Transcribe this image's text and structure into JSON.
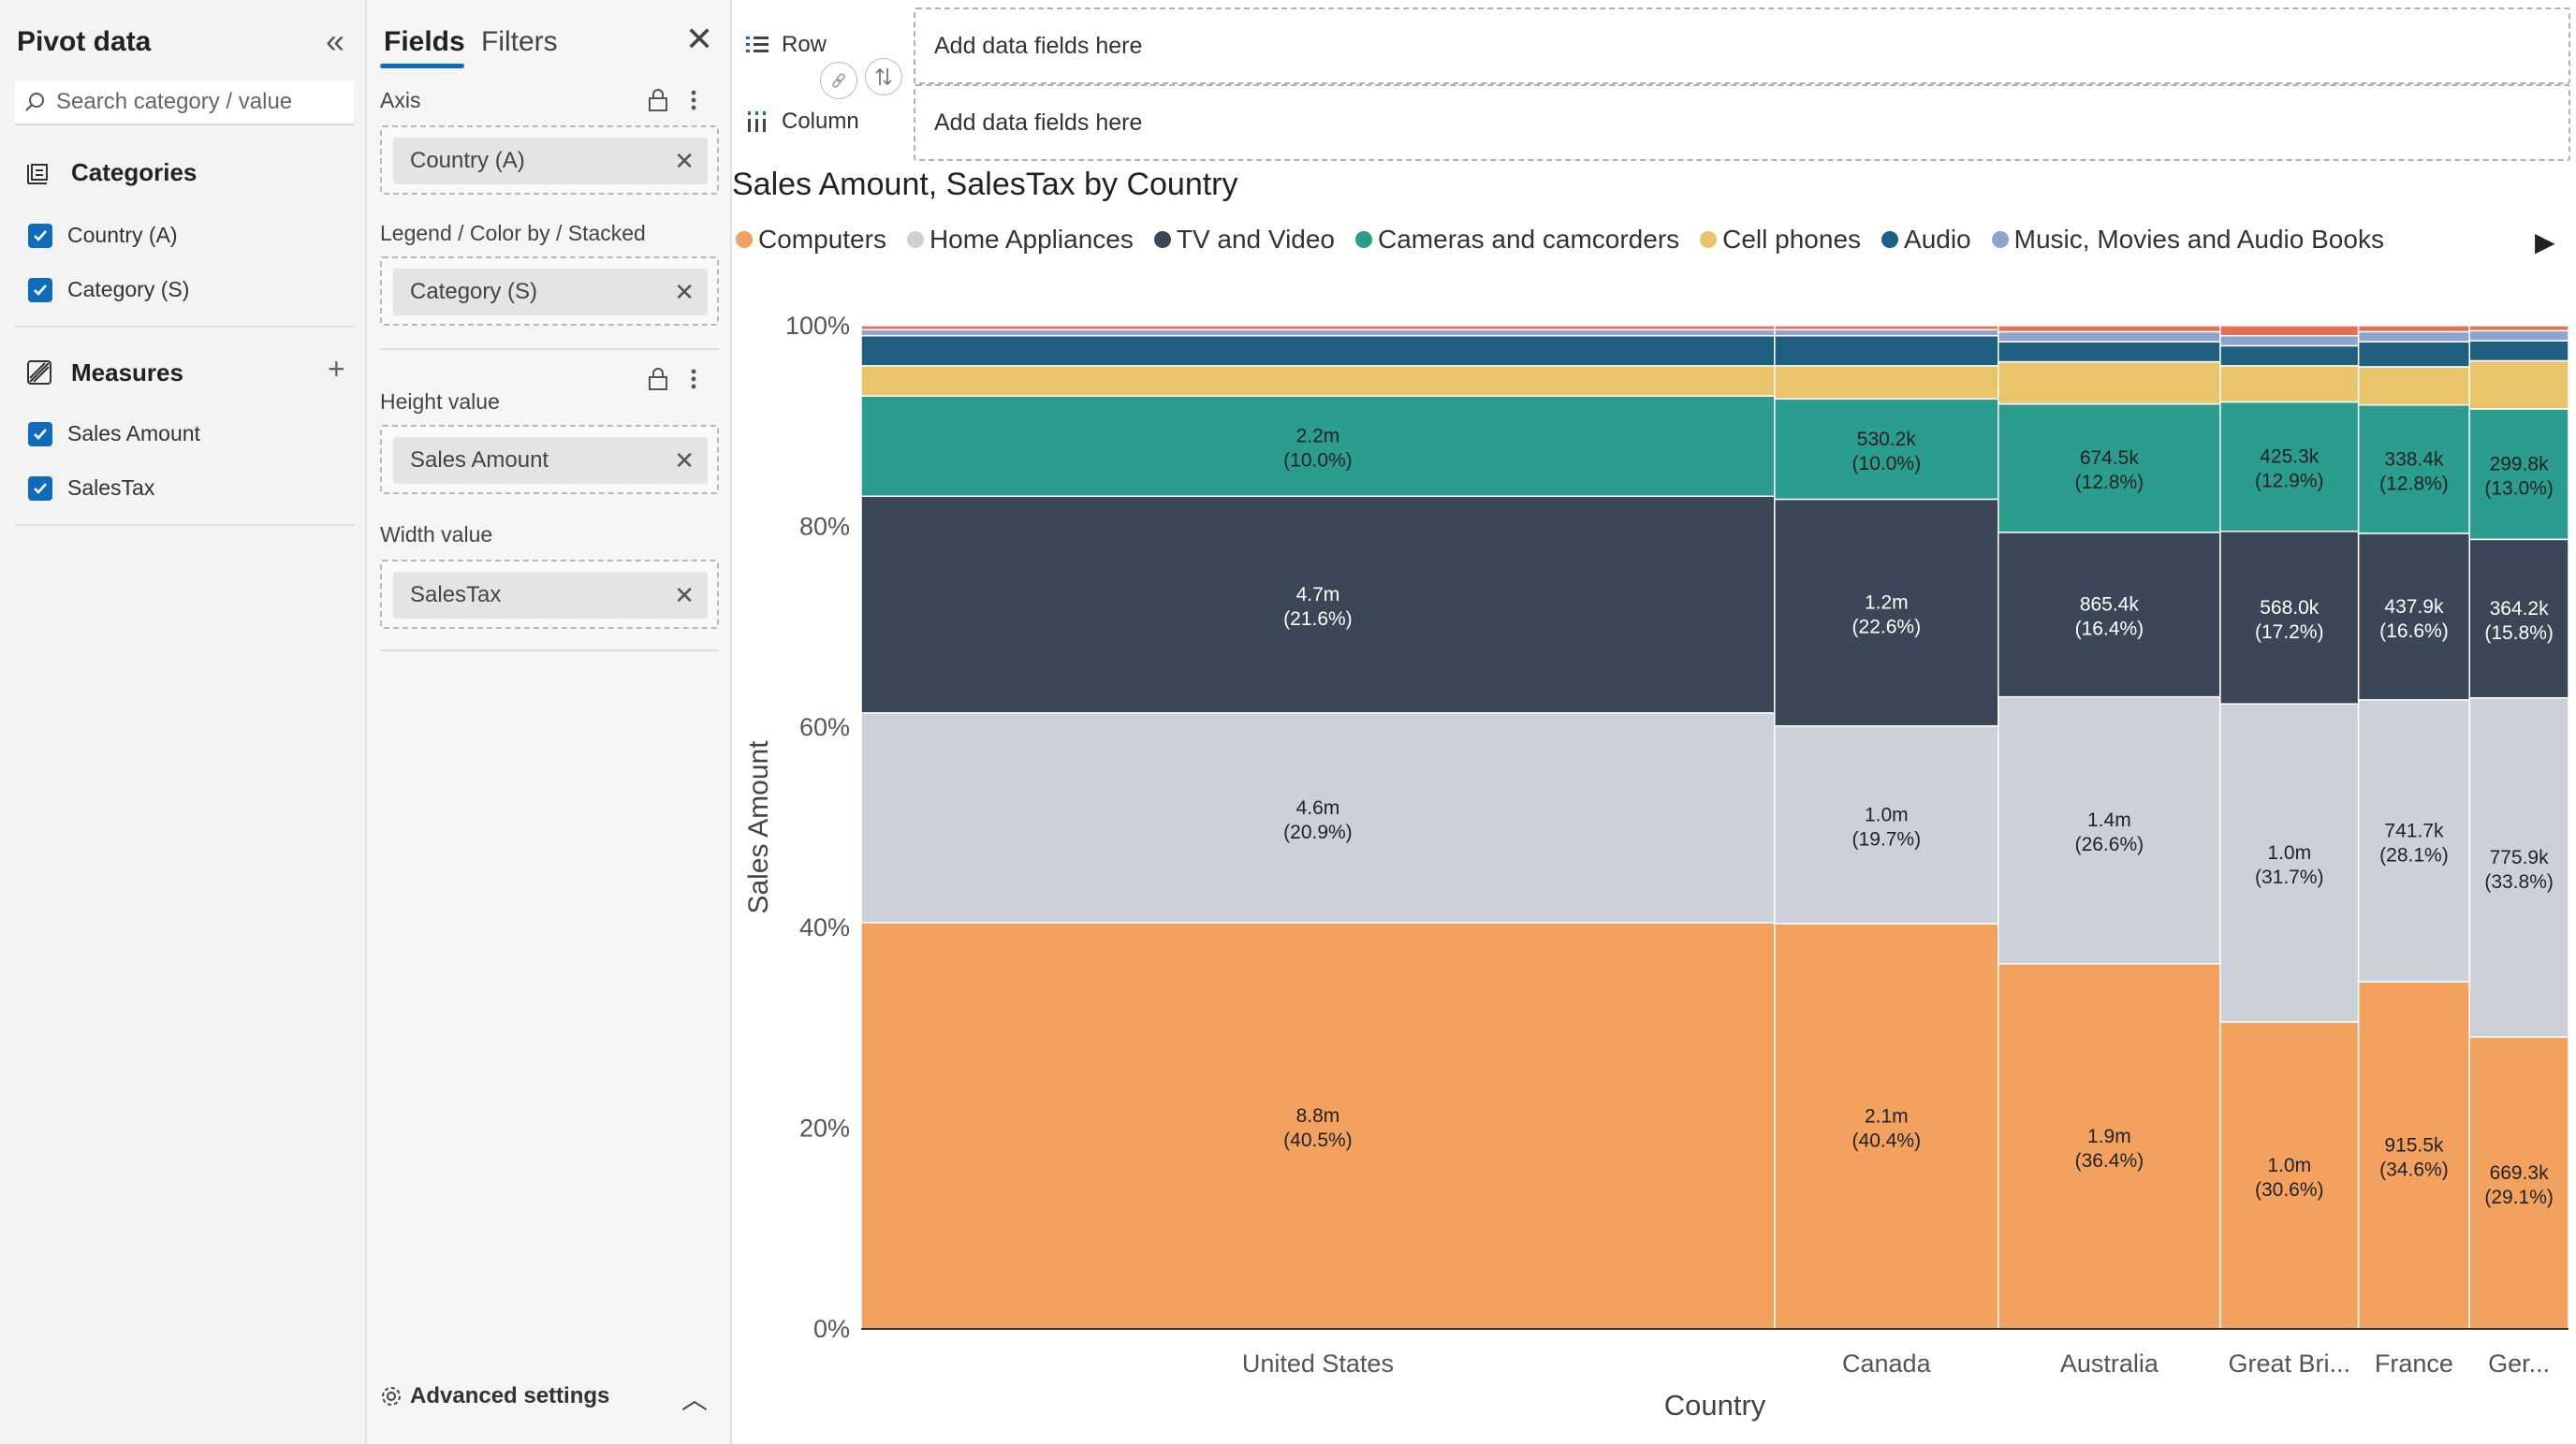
{
  "pivot": {
    "title": "Pivot data",
    "search_placeholder": "Search category / value",
    "categories_label": "Categories",
    "categories": [
      "Country (A)",
      "Category (S)"
    ],
    "measures_label": "Measures",
    "measures": [
      "Sales Amount",
      "SalesTax"
    ]
  },
  "fields": {
    "tab_fields": "Fields",
    "tab_filters": "Filters",
    "axis_label": "Axis",
    "axis_value": "Country (A)",
    "legend_label": "Legend / Color by / Stacked",
    "legend_value": "Category (S)",
    "height_label": "Height value",
    "height_value": "Sales Amount",
    "width_label": "Width value",
    "width_value": "SalesTax",
    "advanced": "Advanced settings"
  },
  "header": {
    "row_label": "Row",
    "column_label": "Column",
    "row_placeholder": "Add data fields here",
    "column_placeholder": "Add data fields here"
  },
  "chart_data": {
    "type": "mekko",
    "title": "Sales Amount, SalesTax by Country",
    "xlabel": "Country",
    "ylabel": "Sales Amount",
    "y_ticks": [
      "100%",
      "80%",
      "60%",
      "40%",
      "20%",
      "0%"
    ],
    "categories": [
      "United States",
      "Canada",
      "Australia",
      "Great Bri...",
      "France",
      "Ger..."
    ],
    "widths": [
      0.535,
      0.131,
      0.13,
      0.081,
      0.065,
      0.058
    ],
    "series": [
      {
        "name": "Computers",
        "color": "#f2a25e",
        "values": [
          40.5,
          40.4,
          36.4,
          30.6,
          34.6,
          29.1
        ],
        "labels": [
          "8.8m",
          "2.1m",
          "1.9m",
          "1.0m",
          "915.5k",
          "669.3k"
        ]
      },
      {
        "name": "Home Appliances",
        "color": "#ccd0d8",
        "values": [
          20.9,
          19.7,
          26.6,
          31.7,
          28.1,
          33.8
        ],
        "labels": [
          "4.6m",
          "1.0m",
          "1.4m",
          "1.0m",
          "741.7k",
          "775.9k"
        ]
      },
      {
        "name": "TV and Video",
        "color": "#3b4656",
        "values": [
          21.6,
          22.6,
          16.4,
          17.2,
          16.6,
          15.8
        ],
        "labels": [
          "4.7m",
          "1.2m",
          "865.4k",
          "568.0k",
          "437.9k",
          "364.2k"
        ]
      },
      {
        "name": "Cameras and camcorders",
        "color": "#2a9d8f",
        "values": [
          10.0,
          10.0,
          12.8,
          12.9,
          12.8,
          13.0
        ],
        "labels": [
          "2.2m",
          "530.2k",
          "674.5k",
          "425.3k",
          "338.4k",
          "299.8k"
        ]
      },
      {
        "name": "Cell phones",
        "color": "#e9c46a",
        "values": [
          3.0,
          3.3,
          4.2,
          3.6,
          3.8,
          4.8
        ],
        "labels": []
      },
      {
        "name": "Audio",
        "color": "#1f5f80",
        "values": [
          3.0,
          3.0,
          2.0,
          2.0,
          2.5,
          2.0
        ],
        "labels": []
      },
      {
        "name": "Music, Movies and Audio Books",
        "color": "#8ea4cc",
        "values": [
          0.6,
          0.6,
          1.0,
          1.0,
          1.0,
          1.0
        ],
        "labels": []
      },
      {
        "name": "",
        "color": "#e76f51",
        "values": [
          0.4,
          0.4,
          0.6,
          1.0,
          0.6,
          0.5
        ],
        "labels": []
      }
    ]
  }
}
